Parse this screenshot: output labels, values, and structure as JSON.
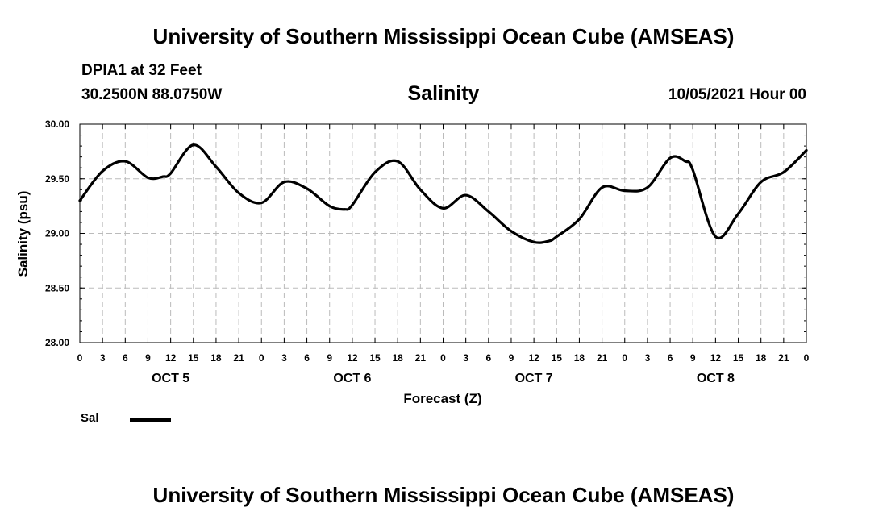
{
  "header": {
    "title": "University of Southern Mississippi Ocean Cube (AMSEAS)",
    "station": "DPIA1 at 32 Feet",
    "coords": "30.2500N  88.0750W",
    "date": "10/05/2021 Hour 00"
  },
  "footer": {
    "title": "University of Southern Mississippi Ocean Cube (AMSEAS)"
  },
  "chart_data": {
    "type": "line",
    "title": "Salinity",
    "xlabel": "Forecast (Z)",
    "ylabel": "Salinity (psu)",
    "ylim": [
      28.0,
      30.0
    ],
    "xlim_hours": [
      0,
      96
    ],
    "y_ticks": [
      "28.00",
      "28.50",
      "29.00",
      "29.50",
      "30.00"
    ],
    "x_tick_labels": [
      "0",
      "3",
      "6",
      "9",
      "12",
      "15",
      "18",
      "21",
      "0",
      "3",
      "6",
      "9",
      "12",
      "15",
      "18",
      "21",
      "0",
      "3",
      "6",
      "9",
      "12",
      "15",
      "18",
      "21",
      "0",
      "3",
      "6",
      "9",
      "12",
      "15",
      "18",
      "21",
      "0"
    ],
    "day_labels": [
      {
        "label": "OCT 5",
        "hour": 12
      },
      {
        "label": "OCT 6",
        "hour": 36
      },
      {
        "label": "OCT 7",
        "hour": 60
      },
      {
        "label": "OCT 8",
        "hour": 84
      }
    ],
    "grid": true,
    "line_color": "#000000",
    "series": [
      {
        "name": "Sal",
        "x": [
          0,
          3,
          6,
          9,
          11,
          12,
          15,
          18,
          21,
          24,
          27,
          30,
          33,
          35,
          36,
          39,
          42,
          45,
          48,
          51,
          54,
          57,
          60,
          62,
          63,
          66,
          69,
          72,
          75,
          78,
          80,
          81,
          84,
          87,
          90,
          93,
          96
        ],
        "values": [
          29.3,
          29.57,
          29.66,
          29.51,
          29.52,
          29.55,
          29.81,
          29.61,
          29.37,
          29.28,
          29.47,
          29.41,
          29.25,
          29.22,
          29.26,
          29.56,
          29.66,
          29.4,
          29.23,
          29.35,
          29.2,
          29.02,
          28.92,
          28.93,
          28.97,
          29.13,
          29.42,
          29.39,
          29.42,
          29.69,
          29.66,
          29.58,
          28.97,
          29.18,
          29.47,
          29.56,
          29.76
        ]
      }
    ],
    "legend": {
      "entries": [
        "Sal"
      ],
      "placement": "bottom-left"
    }
  }
}
